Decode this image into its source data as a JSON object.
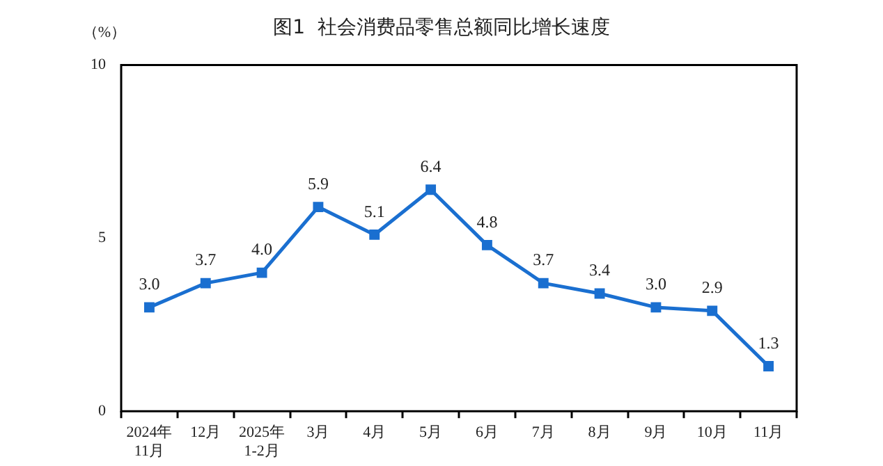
{
  "chart_data": {
    "type": "line",
    "title": "图1  社会消费品零售总额同比增长速度",
    "ylabel": "（%）",
    "categories": [
      "2024年\n11月",
      "12月",
      "2025年\n1-2月",
      "3月",
      "4月",
      "5月",
      "6月",
      "7月",
      "8月",
      "9月",
      "10月",
      "11月"
    ],
    "series": [
      {
        "color": "#1a6fd0",
        "values": [
          3.0,
          3.7,
          4.0,
          5.9,
          5.1,
          6.4,
          4.8,
          3.7,
          3.4,
          3.0,
          2.9,
          1.3
        ]
      }
    ],
    "value_labels": [
      "3.0",
      "3.7",
      "4.0",
      "5.9",
      "5.1",
      "6.4",
      "4.8",
      "3.7",
      "3.4",
      "3.0",
      "2.9",
      "1.3"
    ],
    "ylim": [
      0,
      10
    ],
    "yticks": [
      0,
      5,
      10
    ],
    "marker": "square",
    "line_style": "solid",
    "legend": false
  }
}
